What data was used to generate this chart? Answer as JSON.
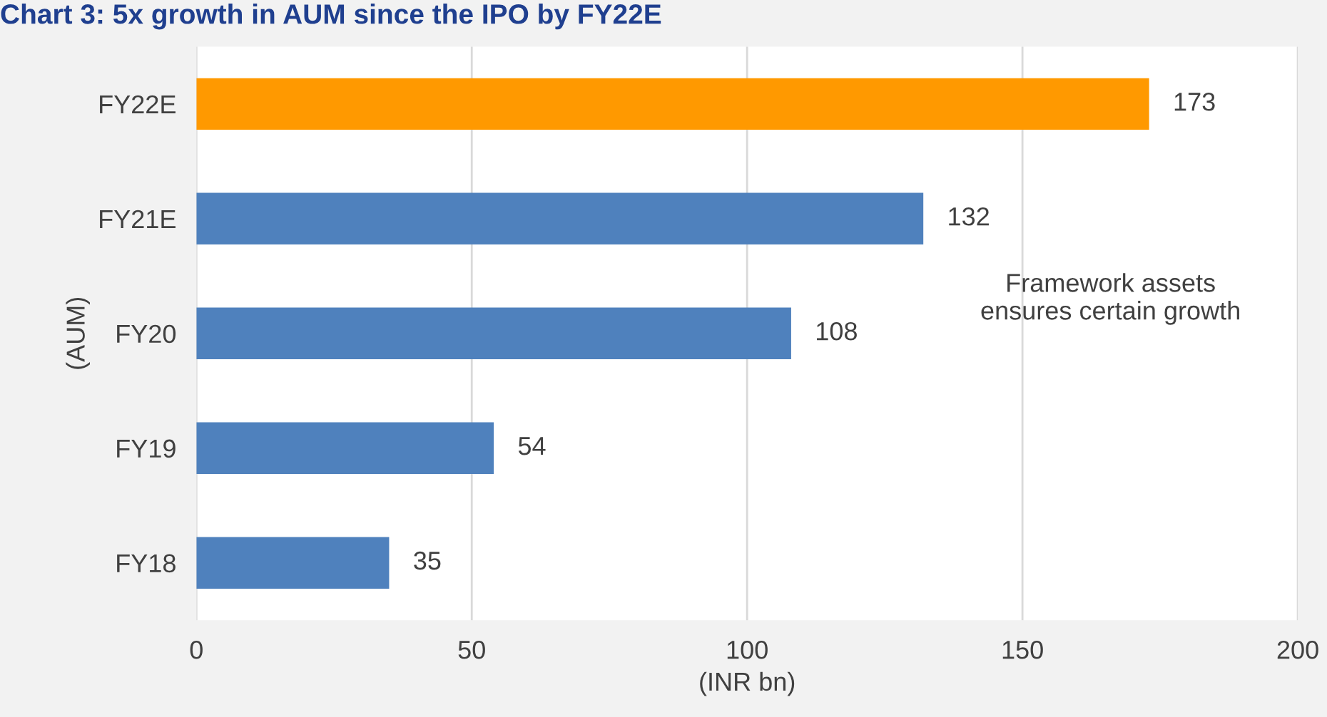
{
  "chart_data": {
    "type": "bar",
    "orientation": "horizontal",
    "title": "Chart 3: 5x growth in AUM since the IPO by FY22E",
    "categories": [
      "FY22E",
      "FY21E",
      "FY20",
      "FY19",
      "FY18"
    ],
    "values": [
      173,
      132,
      108,
      54,
      35
    ],
    "colors": [
      "#ff9900",
      "#4f81bd",
      "#4f81bd",
      "#4f81bd",
      "#4f81bd"
    ],
    "data_labels": true,
    "xlim": [
      0,
      200
    ],
    "xticks": [
      0,
      50,
      100,
      150,
      200
    ],
    "grid": "x",
    "xlabel": "(INR bn)",
    "ylabel": "(AUM)",
    "annotations": [
      "Framework assets\nensures certain growth"
    ]
  }
}
